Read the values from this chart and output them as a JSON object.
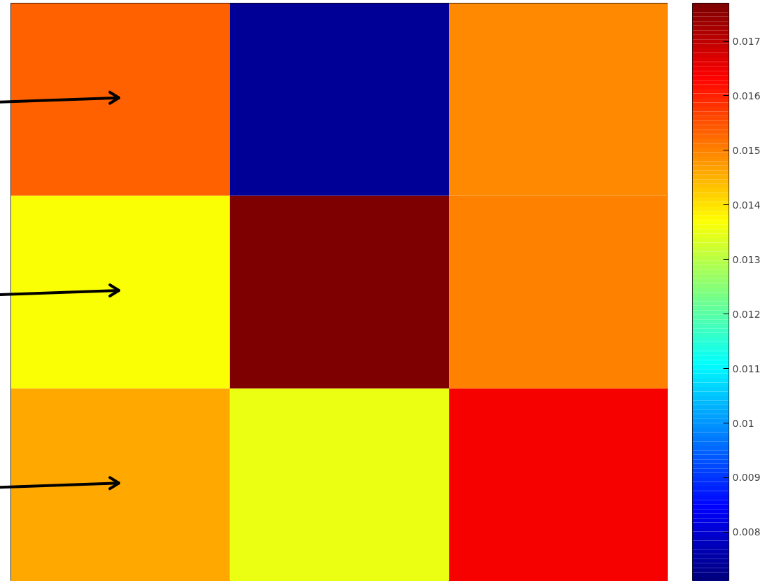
{
  "chart_data": {
    "type": "heatmap",
    "categories": [
      null,
      null,
      null
    ],
    "y_categories": [
      null,
      null,
      null
    ],
    "cells": [
      [
        0.0153,
        0.0074,
        0.0149
      ],
      [
        0.0137,
        0.0177,
        0.015
      ],
      [
        0.0146,
        0.0135,
        0.0164
      ]
    ],
    "clim": [
      0.0071,
      0.0177
    ],
    "cticks": [
      0.008,
      0.009,
      0.01,
      0.011,
      0.012,
      0.013,
      0.014,
      0.015,
      0.016,
      0.017
    ],
    "tick_labels": false
  }
}
